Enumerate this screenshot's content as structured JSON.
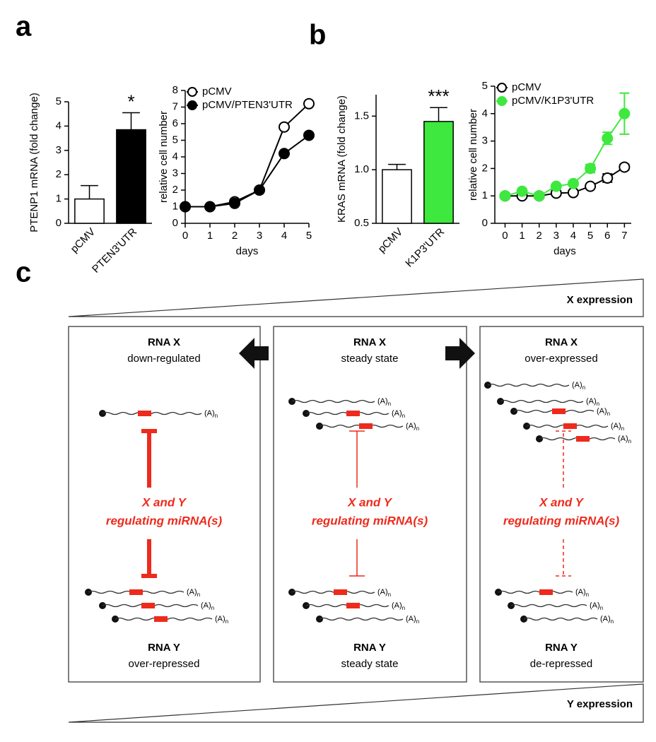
{
  "panel_labels": [
    "a",
    "b",
    "c"
  ],
  "chart_data": [
    {
      "type": "bar",
      "ylabel": "PTENP1 mRNA (fold change)",
      "categories": [
        "pCMV",
        "PTEN3'UTR"
      ],
      "values": [
        1.0,
        3.85
      ],
      "errors": [
        0.55,
        0.7
      ],
      "colors": [
        "#ffffff",
        "#000000"
      ],
      "annotation": "*",
      "ylim": [
        0,
        5
      ],
      "yticks": [
        0,
        1,
        2,
        3,
        4,
        5
      ]
    },
    {
      "type": "line",
      "xlabel": "days",
      "ylabel": "relative cell number",
      "x": [
        0,
        1,
        2,
        3,
        4,
        5
      ],
      "xlim": [
        0,
        5
      ],
      "xticks": [
        0,
        1,
        2,
        3,
        4,
        5
      ],
      "ylim": [
        0,
        8
      ],
      "yticks": [
        0,
        1,
        2,
        3,
        4,
        5,
        6,
        7,
        8
      ],
      "legend": "upper left",
      "series": [
        {
          "name": "pCMV",
          "color": "#000000",
          "marker": "open",
          "values": [
            1,
            1,
            1.3,
            2,
            5.8,
            7.2
          ]
        },
        {
          "name": "pCMV/PTEN3'UTR",
          "color": "#000000",
          "marker": "filled",
          "values": [
            1,
            1,
            1.2,
            2,
            4.2,
            5.3
          ]
        }
      ]
    },
    {
      "type": "bar",
      "ylabel": "KRAS mRNA (fold change)",
      "categories": [
        "pCMV",
        "K1P3'UTR"
      ],
      "values": [
        1.0,
        1.45
      ],
      "errors": [
        0.05,
        0.13
      ],
      "colors": [
        "#ffffff",
        "#3ee83e"
      ],
      "annotation": "***",
      "ylim": [
        0.5,
        1.7
      ],
      "yticks": [
        0.5,
        {
          "value": 1.0,
          "label": "1.0"
        },
        1.5
      ]
    },
    {
      "type": "line",
      "xlabel": "days",
      "ylabel": "relative cell number",
      "x": [
        0,
        1,
        2,
        3,
        4,
        5,
        6,
        7
      ],
      "xlim": [
        -0.6,
        7.4
      ],
      "xticks": [
        0,
        1,
        2,
        3,
        4,
        5,
        6,
        7
      ],
      "ylim": [
        0,
        5
      ],
      "yticks": [
        0,
        1,
        2,
        3,
        4,
        5
      ],
      "legend": "upper left",
      "series": [
        {
          "name": "pCMV",
          "color": "#000000",
          "marker": "open",
          "values": [
            1,
            1,
            1,
            1.1,
            1.12,
            1.35,
            1.65,
            2.05
          ],
          "errors": [
            0,
            0,
            0,
            0.05,
            0.05,
            0.05,
            0.15,
            0.1
          ]
        },
        {
          "name": "pCMV/K1P3'UTR",
          "color": "#3ee83e",
          "marker": "filled",
          "values": [
            1,
            1.17,
            1,
            1.35,
            1.45,
            2,
            3.1,
            4.0
          ],
          "errors": [
            0,
            0,
            0,
            0.05,
            0.05,
            0.15,
            0.22,
            0.75
          ]
        }
      ]
    }
  ],
  "diagram": {
    "x_expression": "X expression",
    "y_expression": "Y expression",
    "polyA": "(A)",
    "polyA_subscript": "n",
    "panels": [
      {
        "top_title": "RNA X",
        "top_state": "down-regulated",
        "mirna": [
          "X and Y",
          "regulating miRNA(s)"
        ],
        "bottom_title": "RNA Y",
        "bottom_state": "over-repressed"
      },
      {
        "top_title": "RNA X",
        "top_state": "steady state",
        "mirna": [
          "X and Y",
          "regulating miRNA(s)"
        ],
        "bottom_title": "RNA Y",
        "bottom_state": "steady state"
      },
      {
        "top_title": "RNA X",
        "top_state": "over-expressed",
        "mirna": [
          "X and Y",
          "regulating miRNA(s)"
        ],
        "bottom_title": "RNA Y",
        "bottom_state": "de-repressed"
      }
    ]
  }
}
